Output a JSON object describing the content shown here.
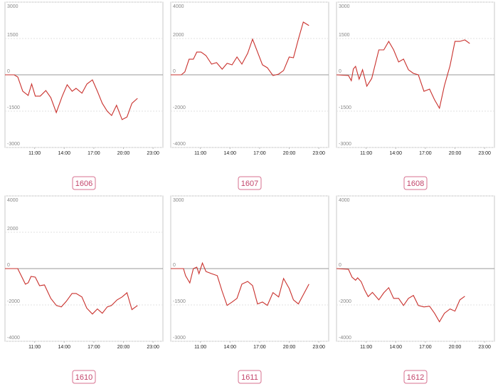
{
  "chart_data": [
    {
      "type": "line",
      "title": "1606",
      "color": "#c9302c",
      "xlim": [
        8,
        24
      ],
      "ylim": [
        -3000,
        3000
      ],
      "xticks": [
        {
          "value": 11,
          "label": "11:00"
        },
        {
          "value": 14,
          "label": "14:00"
        },
        {
          "value": 17,
          "label": "17:00"
        },
        {
          "value": 20,
          "label": "20:00"
        },
        {
          "value": 23,
          "label": "23:00"
        }
      ],
      "yticks": [
        3000,
        1500,
        0,
        -1500,
        -3000
      ],
      "x": [
        8,
        8.93,
        9.3,
        9.8,
        10.35,
        10.7,
        11.07,
        11.57,
        12.14,
        12.64,
        13.2,
        13.8,
        14.3,
        14.8,
        15.2,
        15.8,
        16.3,
        16.86,
        17.36,
        17.86,
        18.36,
        18.8,
        19.3,
        19.86,
        20.36,
        20.86,
        21.43
      ],
      "values": [
        0,
        0,
        -90,
        -680,
        -850,
        -380,
        -880,
        -880,
        -650,
        -940,
        -1560,
        -880,
        -410,
        -680,
        -560,
        -760,
        -380,
        -210,
        -680,
        -1180,
        -1500,
        -1680,
        -1260,
        -1850,
        -1740,
        -1180,
        -970
      ]
    },
    {
      "type": "line",
      "title": "1607",
      "color": "#c9302c",
      "xlim": [
        8,
        24
      ],
      "ylim": [
        -4000,
        4000
      ],
      "xticks": [
        {
          "value": 11,
          "label": "11:00"
        },
        {
          "value": 14,
          "label": "14:00"
        },
        {
          "value": 17,
          "label": "17:00"
        },
        {
          "value": 20,
          "label": "20:00"
        },
        {
          "value": 23,
          "label": "23:00"
        }
      ],
      "yticks": [
        4000,
        2000,
        0,
        -2000,
        -4000
      ],
      "x": [
        8,
        9.07,
        9.43,
        9.86,
        10.29,
        10.64,
        11.07,
        11.57,
        12.14,
        12.64,
        13.21,
        13.71,
        14.21,
        14.71,
        15.21,
        15.79,
        16.29,
        16.79,
        17.29,
        17.79,
        18.36,
        18.93,
        19.43,
        20,
        20.43,
        20.93,
        21.43,
        22
      ],
      "values": [
        0,
        0,
        160,
        860,
        860,
        1250,
        1250,
        1060,
        590,
        670,
        310,
        630,
        550,
        980,
        590,
        1180,
        1960,
        1250,
        550,
        390,
        -40,
        40,
        240,
        980,
        940,
        1960,
        2900,
        2710
      ]
    },
    {
      "type": "line",
      "title": "1608",
      "color": "#c9302c",
      "xlim": [
        8,
        24
      ],
      "ylim": [
        -3000,
        3000
      ],
      "xticks": [
        {
          "value": 11,
          "label": "11:00"
        },
        {
          "value": 14,
          "label": "14:00"
        },
        {
          "value": 17,
          "label": "17:00"
        },
        {
          "value": 20,
          "label": "20:00"
        },
        {
          "value": 23,
          "label": "23:00"
        }
      ],
      "yticks": [
        3000,
        1500,
        0,
        -1500,
        -3000
      ],
      "x": [
        8,
        9.21,
        9.5,
        9.71,
        9.93,
        10.29,
        10.64,
        11.07,
        11.57,
        12.29,
        12.79,
        13.29,
        13.79,
        14.29,
        14.79,
        15.29,
        15.79,
        16.29,
        16.86,
        17.43,
        17.93,
        18.43,
        18.93,
        19.5,
        20,
        20.5,
        21,
        21.5
      ],
      "values": [
        0,
        -30,
        -240,
        240,
        350,
        -180,
        210,
        -470,
        -150,
        1030,
        1030,
        1380,
        1030,
        530,
        650,
        210,
        60,
        0,
        -680,
        -590,
        -1030,
        -1380,
        -440,
        380,
        1380,
        1380,
        1440,
        1290
      ]
    },
    {
      "type": "line",
      "title": "1610",
      "color": "#c9302c",
      "xlim": [
        8,
        24
      ],
      "ylim": [
        -4000,
        4000
      ],
      "xticks": [
        {
          "value": 11,
          "label": "11:00"
        },
        {
          "value": 14,
          "label": "14:00"
        },
        {
          "value": 17,
          "label": "17:00"
        },
        {
          "value": 20,
          "label": "20:00"
        },
        {
          "value": 23,
          "label": "23:00"
        }
      ],
      "yticks": [
        4000,
        2000,
        0,
        -2000,
        -4000
      ],
      "x": [
        8,
        9.29,
        9.64,
        10.07,
        10.36,
        10.64,
        11.07,
        11.5,
        12,
        12.64,
        13.21,
        13.71,
        14.21,
        14.79,
        15.21,
        15.79,
        16.29,
        16.86,
        17.36,
        17.86,
        18.36,
        18.79,
        19.36,
        19.86,
        20.36,
        20.86,
        21.43
      ],
      "values": [
        0,
        0,
        -390,
        -860,
        -780,
        -430,
        -470,
        -940,
        -900,
        -1640,
        -2030,
        -2110,
        -1800,
        -1370,
        -1370,
        -1560,
        -2180,
        -2500,
        -2220,
        -2460,
        -2110,
        -2030,
        -1720,
        -1560,
        -1330,
        -2260,
        -2030
      ]
    },
    {
      "type": "line",
      "title": "1611",
      "color": "#c9302c",
      "xlim": [
        8,
        24
      ],
      "ylim": [
        -3000,
        3000
      ],
      "xticks": [
        {
          "value": 11,
          "label": "11:00"
        },
        {
          "value": 14,
          "label": "14:00"
        },
        {
          "value": 17,
          "label": "17:00"
        },
        {
          "value": 20,
          "label": "20:00"
        },
        {
          "value": 23,
          "label": "23:00"
        }
      ],
      "yticks": [
        3000,
        0,
        -1500,
        -3000
      ],
      "x": [
        8,
        9.29,
        9.5,
        9.93,
        10.29,
        10.64,
        10.86,
        11.21,
        11.57,
        12.14,
        12.71,
        13.21,
        13.71,
        14.21,
        14.71,
        15.21,
        15.79,
        16.29,
        16.79,
        17.29,
        17.79,
        18.36,
        18.93,
        19.43,
        20,
        20.43,
        20.93,
        21.43,
        22
      ],
      "values": [
        0,
        0,
        -290,
        -590,
        0,
        60,
        -210,
        230,
        -120,
        -210,
        -290,
        -940,
        -1520,
        -1380,
        -1230,
        -640,
        -530,
        -700,
        -1460,
        -1380,
        -1520,
        -990,
        -1170,
        -410,
        -820,
        -1290,
        -1460,
        -1080,
        -640
      ]
    },
    {
      "type": "line",
      "title": "1612",
      "color": "#c9302c",
      "xlim": [
        8,
        24
      ],
      "ylim": [
        -4000,
        4000
      ],
      "xticks": [
        {
          "value": 11,
          "label": "11:00"
        },
        {
          "value": 14,
          "label": "14:00"
        },
        {
          "value": 17,
          "label": "17:00"
        },
        {
          "value": 20,
          "label": "20:00"
        },
        {
          "value": 23,
          "label": "23:00"
        }
      ],
      "yticks": [
        4000,
        0,
        -2000,
        -4000
      ],
      "x": [
        8,
        9.21,
        9.57,
        9.93,
        10.14,
        10.5,
        10.86,
        11.21,
        11.64,
        12.29,
        12.79,
        13.29,
        13.79,
        14.29,
        14.79,
        15.29,
        15.79,
        16.29,
        16.86,
        17.43,
        17.93,
        18.43,
        18.93,
        19.5,
        20,
        20.5,
        21
      ],
      "values": [
        0,
        -40,
        -470,
        -640,
        -510,
        -720,
        -1190,
        -1540,
        -1310,
        -1720,
        -1330,
        -1050,
        -1640,
        -1640,
        -2030,
        -1640,
        -1480,
        -2030,
        -2110,
        -2070,
        -2460,
        -2930,
        -2460,
        -2220,
        -2340,
        -1720,
        -1520
      ]
    }
  ]
}
